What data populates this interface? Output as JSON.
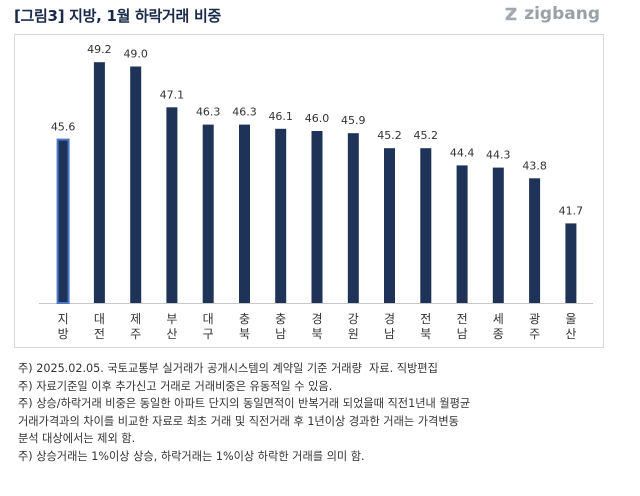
{
  "header": {
    "title": "[그림3] 지방, 1월 하락거래 비중",
    "brand": "zigbang",
    "brand_icon": "zigbang-logo-icon"
  },
  "chart_data": {
    "type": "bar",
    "title": "",
    "xlabel": "",
    "ylabel": "",
    "categories": [
      "지방",
      "대전",
      "제주",
      "부산",
      "대구",
      "충북",
      "충남",
      "경북",
      "강원",
      "경남",
      "전북",
      "전남",
      "세종",
      "광주",
      "울산"
    ],
    "values": [
      45.6,
      49.2,
      49.0,
      47.1,
      46.3,
      46.3,
      46.1,
      46.0,
      45.9,
      45.2,
      45.2,
      44.4,
      44.3,
      43.8,
      41.7
    ],
    "highlight_index": 0,
    "ylim": [
      38.0,
      50.0
    ],
    "grid": false,
    "legend": "none",
    "colors": {
      "bar": "#1f3359",
      "highlight_outline": "#4a78c8"
    }
  },
  "notes": [
    "주) 2025.02.05. 국토교통부 실거래가 공개시스템의 계약일 기준 거래량  자료. 직방편집",
    "주) 자료기준일 이후 추가신고 거래로 거래비중은 유동적일 수 있음.",
    "주) 상승/하락거래 비중은 동일한 아파트 단지의 동일면적이 반복거래 되었을때 직전1년내 월평균",
    "거래가격과의 차이를 비교한 자료로 최초 거래 및 직전거래 후 1년이상 경과한 거래는 가격변동",
    "분석 대상에서는 제외 함.",
    "주) 상승거래는 1%이상 상승, 하락거래는 1%이상 하락한 거래를 의미 함."
  ]
}
